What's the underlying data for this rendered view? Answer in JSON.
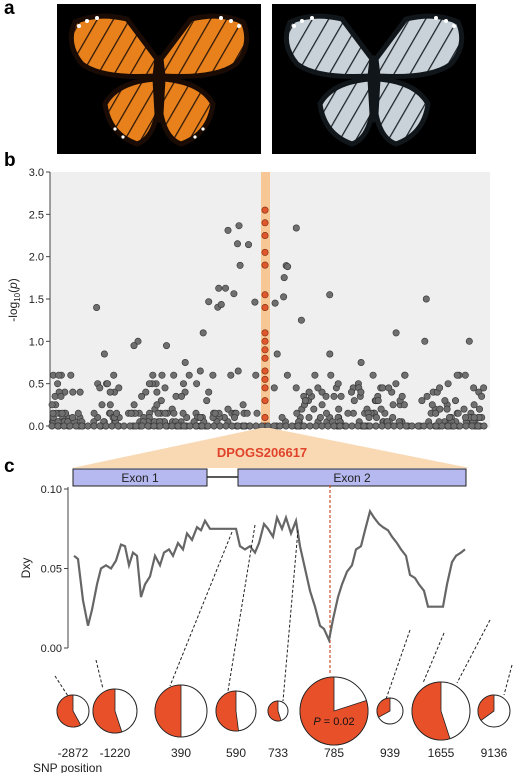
{
  "panels": {
    "a": "a",
    "b": "b",
    "c": "c"
  },
  "panel_b": {
    "y_axis_label": "-log10(p)",
    "y_ticks": [
      "3.0",
      "2.5",
      "2.0",
      "1.5",
      "1.0",
      "0.5",
      "0.0"
    ],
    "highlight_color": "#f7c796",
    "point_color": "#6f6f6f",
    "highlight_point_color": "#e0572c"
  },
  "gene": {
    "name": "DPOGS206617",
    "name_color": "#e0432a",
    "exon1": "Exon 1",
    "exon2": "Exon 2",
    "exon_fill": "#b6b9ef"
  },
  "panel_c": {
    "y_axis_label": "Dxy",
    "y_ticks": [
      "0.10",
      "0.05",
      "0.00"
    ],
    "x_axis_title": "SNP position",
    "pvalue_text": "P = 0.02",
    "pie_color": "#e8502a",
    "snp_positions": [
      "-2872",
      "-1220",
      "390",
      "590",
      "733",
      "785",
      "939",
      "1655",
      "9136"
    ],
    "pie_fractions": [
      0.58,
      0.55,
      0.5,
      0.52,
      0.55,
      0.8,
      0.33,
      0.55,
      0.35
    ]
  }
}
